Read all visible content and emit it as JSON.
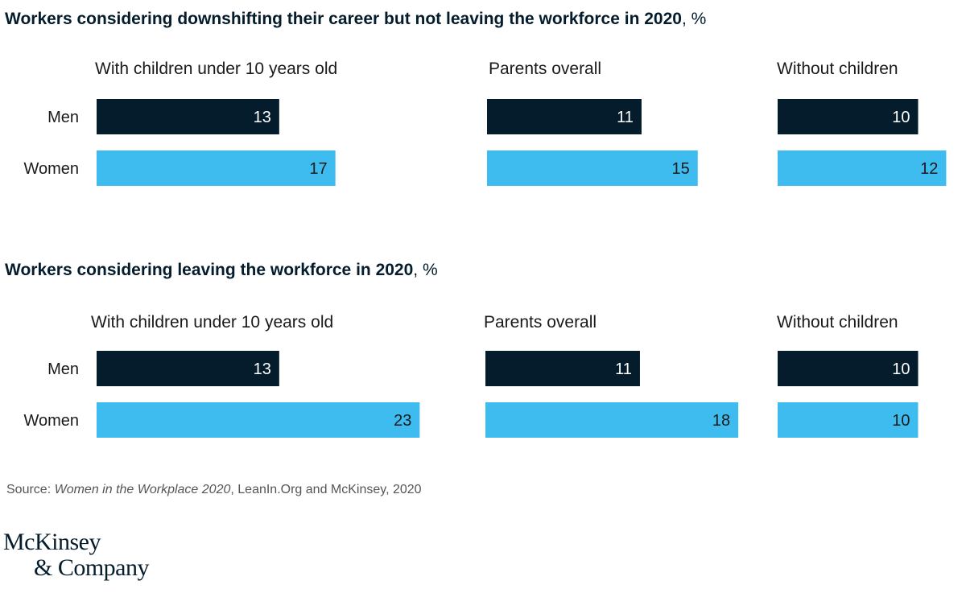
{
  "colors": {
    "men": "#051c2c",
    "women": "#3ebcf0",
    "men_text": "#ffffff",
    "women_text": "#1a1a1a"
  },
  "source": {
    "prefix": "Source: ",
    "title": "Women in the Workplace 2020",
    "suffix": ", LeanIn.Org and McKinsey, 2020"
  },
  "logo": {
    "line1": "McKinsey",
    "line2": "& Company"
  },
  "chart_data": [
    {
      "type": "bar",
      "orientation": "horizontal",
      "title": "Workers considering downshifting their career but not leaving the workforce in 2020",
      "unit": "%",
      "categories": [
        "Men",
        "Women"
      ],
      "panels": [
        {
          "title": "With children under 10 years old",
          "values": [
            13,
            17
          ]
        },
        {
          "title": "Parents overall",
          "values": [
            11,
            15
          ]
        },
        {
          "title": "Without children",
          "values": [
            10,
            12
          ]
        }
      ]
    },
    {
      "type": "bar",
      "orientation": "horizontal",
      "title": "Workers considering leaving the workforce in 2020",
      "unit": "%",
      "categories": [
        "Men",
        "Women"
      ],
      "panels": [
        {
          "title": "With children under 10 years old",
          "values": [
            13,
            23
          ]
        },
        {
          "title": "Parents overall",
          "values": [
            11,
            18
          ]
        },
        {
          "title": "Without children",
          "values": [
            10,
            10
          ]
        }
      ]
    }
  ]
}
